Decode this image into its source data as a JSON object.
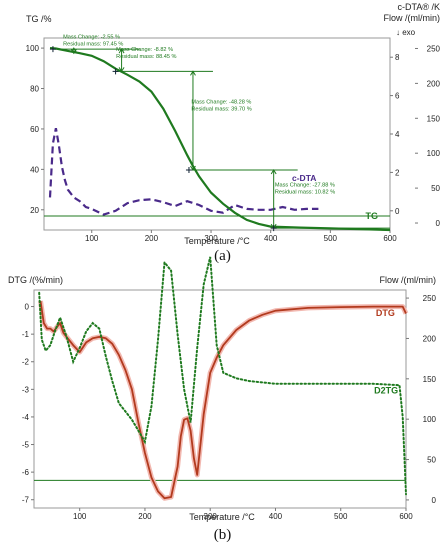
{
  "captions": {
    "a": "(a)",
    "b": "(b)"
  },
  "chart_data": [
    {
      "type": "line",
      "y_left_label": "TG /%",
      "y_right_label_1": "c-DTA® /K",
      "y_right_label_2": "Flow /(ml/min)",
      "y_right_1_note": "↓ exo",
      "xlabel": "Temperature /°C",
      "xlim": [
        20,
        600
      ],
      "x_ticks": [
        "100",
        "200",
        "300",
        "400",
        "500",
        "600"
      ],
      "ylim_left": [
        10,
        105
      ],
      "y_left_ticks": [
        "100",
        "80",
        "60",
        "40",
        "20"
      ],
      "ylim_right_dta": [
        -1,
        9
      ],
      "y_right_dta_ticks": [
        "8",
        "6",
        "4",
        "2",
        "0"
      ],
      "ylim_right_flow": [
        -10,
        265
      ],
      "y_right_flow_ticks": [
        "250",
        "200",
        "150",
        "100",
        "50",
        "0"
      ],
      "series": [
        {
          "name": "TG",
          "color": "#1f7a1f",
          "x": [
            30,
            40,
            60,
            80,
            100,
            120,
            140,
            160,
            180,
            200,
            220,
            240,
            250,
            260,
            270,
            280,
            300,
            320,
            340,
            360,
            380,
            400,
            450,
            500,
            550,
            600
          ],
          "y": [
            100,
            99.8,
            98.6,
            97.5,
            96.2,
            93.5,
            89.8,
            86.8,
            83.5,
            78.5,
            70,
            59,
            53,
            47,
            41.5,
            36.5,
            28.5,
            23,
            18.5,
            15,
            13,
            11.7,
            11.2,
            10.8,
            10.4,
            10
          ]
        },
        {
          "name": "c-DTA",
          "color": "#4a2a8a",
          "x": [
            30,
            35,
            40,
            45,
            50,
            55,
            60,
            70,
            80,
            90,
            100,
            120,
            140,
            160,
            180,
            200,
            220,
            240,
            260,
            280,
            300,
            320,
            340,
            360,
            380,
            400,
            420,
            440,
            460,
            480
          ],
          "y": [
            0.7,
            3.5,
            4.3,
            3.4,
            2.3,
            1.6,
            1.1,
            0.7,
            0.5,
            0.2,
            0.1,
            -0.2,
            0.0,
            0.4,
            0.55,
            0.6,
            0.45,
            0.25,
            0.5,
            0.3,
            0.0,
            -0.1,
            0.3,
            0.1,
            0.05,
            0.05,
            0.2,
            0.05,
            0.1,
            0.1
          ]
        },
        {
          "name": "Flow",
          "color": "#1f7a1f",
          "x": [
            20,
            600
          ],
          "y": [
            10,
            10
          ]
        }
      ],
      "step_labels": [
        {
          "x": 35,
          "y": 99.5,
          "change": "Mass Change:   -2.55 %",
          "residual": "Residual mass:  97.45 %"
        },
        {
          "x": 140,
          "y": 94,
          "change": "Mass Change:   -8.82 %",
          "residual": "Residual mass:  88.45 %"
        },
        {
          "x": 263,
          "y": 63,
          "change": "Mass Change:   -48.28 %",
          "residual": "Residual mass:  39.70 %"
        },
        {
          "x": 405,
          "y": 28,
          "change": "Mass Change:   -27.88 %",
          "residual": "Residual mass:  10.82 %"
        }
      ]
    },
    {
      "type": "line",
      "ylabel": "DTG /(%/min)",
      "y_right_label": "Flow /(ml/min)",
      "xlabel": "Temperature /°C",
      "xlim": [
        30,
        600
      ],
      "x_ticks": [
        "100",
        "200",
        "300",
        "400",
        "500",
        "600"
      ],
      "ylim": [
        -7.3,
        0.6
      ],
      "y_ticks": [
        "0",
        "-1",
        "-2",
        "-3",
        "-4",
        "-5",
        "-6",
        "-7"
      ],
      "ylim_right": [
        -10,
        260
      ],
      "y_right_ticks": [
        "250",
        "200",
        "150",
        "100",
        "50",
        "0"
      ],
      "series": [
        {
          "name": "DTG",
          "color": "#b23a1e",
          "x": [
            40,
            45,
            50,
            55,
            60,
            65,
            70,
            75,
            80,
            90,
            100,
            110,
            120,
            130,
            140,
            150,
            160,
            170,
            180,
            190,
            200,
            210,
            220,
            230,
            240,
            250,
            255,
            260,
            265,
            270,
            275,
            280,
            290,
            300,
            310,
            320,
            340,
            360,
            380,
            400,
            450,
            500,
            550,
            595,
            600
          ],
          "y": [
            0.2,
            -0.6,
            -0.8,
            -0.8,
            -0.9,
            -0.75,
            -0.6,
            -0.95,
            -1.1,
            -1.4,
            -1.65,
            -1.3,
            -1.15,
            -1.1,
            -1.15,
            -1.35,
            -1.75,
            -2.3,
            -3.0,
            -4.2,
            -5.3,
            -6.2,
            -6.7,
            -6.95,
            -6.9,
            -5.8,
            -4.7,
            -4.1,
            -4.05,
            -4.5,
            -5.5,
            -6.1,
            -3.9,
            -2.4,
            -1.85,
            -1.4,
            -0.85,
            -0.5,
            -0.3,
            -0.15,
            -0.05,
            -0.02,
            0.0,
            0.0,
            -0.25
          ]
        },
        {
          "name": "D2TG",
          "color": "#1f7a1f",
          "x": [
            38,
            42,
            48,
            55,
            62,
            70,
            80,
            90,
            100,
            110,
            120,
            130,
            140,
            150,
            160,
            170,
            180,
            190,
            200,
            210,
            220,
            230,
            240,
            250,
            260,
            270,
            280,
            290,
            300,
            310,
            320,
            340,
            360,
            380,
            400,
            450,
            500,
            550,
            590,
            595,
            600
          ],
          "y": [
            0.5,
            -1.2,
            -1.6,
            -1.4,
            -0.9,
            -0.4,
            -1.1,
            -2.0,
            -1.5,
            -0.9,
            -0.6,
            -0.8,
            -1.8,
            -2.7,
            -3.5,
            -3.8,
            -4.1,
            -4.5,
            -4.9,
            -3.6,
            -1.2,
            1.6,
            1.3,
            -1.0,
            -3.0,
            -4.2,
            -1.5,
            0.8,
            1.8,
            -1.4,
            -2.4,
            -2.6,
            -2.7,
            -2.75,
            -2.8,
            -2.8,
            -2.8,
            -2.8,
            -2.85,
            -4.0,
            -6.8
          ]
        },
        {
          "name": "Flow",
          "color": "#1f7a1f",
          "x": [
            30,
            600
          ],
          "y": [
            -6.3,
            -6.3
          ]
        }
      ]
    }
  ]
}
